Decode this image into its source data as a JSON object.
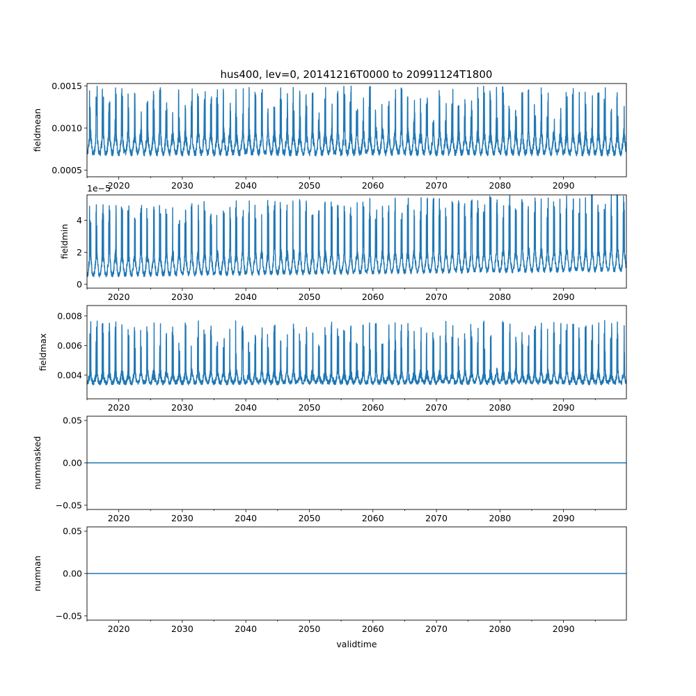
{
  "chart_data": [
    {
      "type": "line",
      "title": "hus400, lev=0, 20141216T0000 to 20991124T1800",
      "ylabel": "fieldmean",
      "xlabel": "",
      "xlim": [
        2015.0,
        2099.9
      ],
      "ylim": [
        0.00042,
        0.00153
      ],
      "yticks": [
        0.0005,
        0.001,
        0.0015
      ],
      "ytick_labels": [
        "0.0005",
        "0.0010",
        "0.0015"
      ],
      "offset_text": "",
      "color": "#1f77b4",
      "series": [
        {
          "name": "fieldmean",
          "pattern": {
            "base": 0.00078,
            "seasonal_amp": 0.00022,
            "noise": 0.00012,
            "peak_level": 0.00125,
            "floor": 0.0005,
            "trend": 0.0
          }
        }
      ]
    },
    {
      "type": "line",
      "title": "",
      "ylabel": "fieldmin",
      "xlabel": "",
      "xlim": [
        2015.0,
        2099.9
      ],
      "ylim": [
        -0.25,
        5.6
      ],
      "yticks": [
        0,
        2,
        4
      ],
      "ytick_labels": [
        "0",
        "2",
        "4"
      ],
      "offset_text": "1e−5",
      "color": "#1f77b4",
      "series": [
        {
          "name": "fieldmin",
          "pattern": {
            "base": 1.0,
            "seasonal_amp": 1.2,
            "noise": 0.5,
            "peak_level": 4.2,
            "floor": 0.1,
            "trend": 0.004
          }
        }
      ]
    },
    {
      "type": "line",
      "title": "",
      "ylabel": "fieldmax",
      "xlabel": "",
      "xlim": [
        2015.0,
        2099.9
      ],
      "ylim": [
        0.0024,
        0.0087
      ],
      "yticks": [
        0.004,
        0.006,
        0.008
      ],
      "ytick_labels": [
        "0.004",
        "0.006",
        "0.008"
      ],
      "offset_text": "",
      "color": "#1f77b4",
      "series": [
        {
          "name": "fieldmax",
          "pattern": {
            "base": 0.0037,
            "seasonal_amp": 0.0006,
            "noise": 0.0005,
            "peak_level": 0.0064,
            "floor": 0.0027,
            "trend": 6e-06
          }
        }
      ]
    },
    {
      "type": "line",
      "title": "",
      "ylabel": "nummasked",
      "xlabel": "",
      "xlim": [
        2015.0,
        2099.9
      ],
      "ylim": [
        -0.055,
        0.055
      ],
      "yticks": [
        -0.05,
        0.0,
        0.05
      ],
      "ytick_labels": [
        "−0.05",
        "0.00",
        "0.05"
      ],
      "offset_text": "",
      "color": "#1f77b4",
      "series": [
        {
          "name": "nummasked",
          "constant": 0.0
        }
      ]
    },
    {
      "type": "line",
      "title": "",
      "ylabel": "numnan",
      "xlabel": "validtime",
      "xlim": [
        2015.0,
        2099.9
      ],
      "ylim": [
        -0.055,
        0.055
      ],
      "yticks": [
        -0.05,
        0.0,
        0.05
      ],
      "ytick_labels": [
        "−0.05",
        "0.00",
        "0.05"
      ],
      "offset_text": "",
      "color": "#1f77b4",
      "series": [
        {
          "name": "numnan",
          "constant": 0.0
        }
      ]
    }
  ],
  "shared_xaxis": {
    "xticks": [
      2020,
      2030,
      2040,
      2050,
      2060,
      2070,
      2080,
      2090
    ],
    "xtick_labels": [
      "2020",
      "2030",
      "2040",
      "2050",
      "2060",
      "2070",
      "2080",
      "2090"
    ],
    "minor_xticks": [
      2015,
      2025,
      2035,
      2045,
      2055,
      2065,
      2075,
      2085,
      2095
    ]
  }
}
